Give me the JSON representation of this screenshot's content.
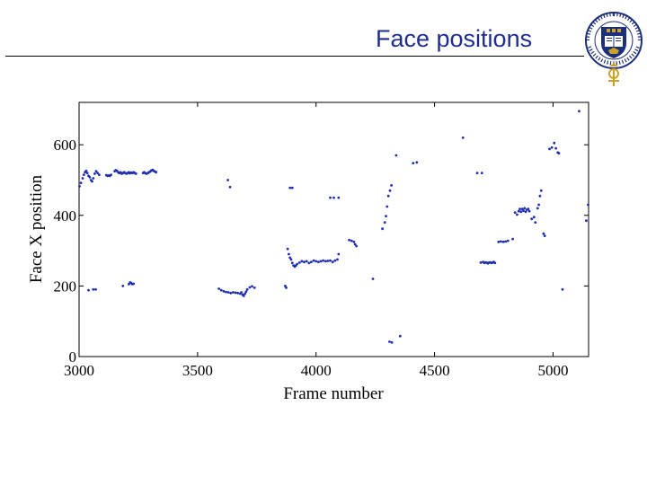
{
  "slide": {
    "title": "Face positions"
  },
  "colors": {
    "title": "#1f2d8f",
    "marker": "#1f2db0",
    "crest_blue": "#1c2f7a",
    "crest_gold": "#c9a227"
  },
  "crest": {
    "icon": "university-of-oxford-crest",
    "lettering": "UNIVERSITY OF OXFORD"
  },
  "chart_data": {
    "type": "scatter",
    "title": "",
    "xlabel": "Frame number",
    "ylabel": "Face X position",
    "xlim": [
      3000,
      5150
    ],
    "ylim": [
      0,
      720
    ],
    "xticks": [
      3000,
      3500,
      4000,
      4500,
      5000
    ],
    "yticks": [
      0,
      200,
      400,
      600
    ],
    "grid": false,
    "marker": "point",
    "series": [
      {
        "points": [
          [
            3002,
            482
          ],
          [
            3008,
            492
          ],
          [
            3015,
            505
          ],
          [
            3020,
            515
          ],
          [
            3025,
            522
          ],
          [
            3030,
            526
          ],
          [
            3035,
            520
          ],
          [
            3040,
            512
          ],
          [
            3045,
            508
          ],
          [
            3050,
            500
          ],
          [
            3055,
            496
          ],
          [
            3060,
            505
          ],
          [
            3066,
            518
          ],
          [
            3072,
            525
          ],
          [
            3078,
            520
          ],
          [
            3085,
            515
          ],
          [
            3115,
            514
          ],
          [
            3120,
            512
          ],
          [
            3125,
            513
          ],
          [
            3130,
            512
          ],
          [
            3135,
            515
          ],
          [
            3150,
            525
          ],
          [
            3155,
            528
          ],
          [
            3160,
            526
          ],
          [
            3165,
            522
          ],
          [
            3170,
            520
          ],
          [
            3175,
            522
          ],
          [
            3180,
            518
          ],
          [
            3185,
            520
          ],
          [
            3190,
            522
          ],
          [
            3195,
            520
          ],
          [
            3200,
            518
          ],
          [
            3205,
            520
          ],
          [
            3210,
            522
          ],
          [
            3215,
            519
          ],
          [
            3220,
            521
          ],
          [
            3225,
            520
          ],
          [
            3230,
            522
          ],
          [
            3235,
            520
          ],
          [
            3240,
            518
          ],
          [
            3270,
            520
          ],
          [
            3275,
            522
          ],
          [
            3280,
            519
          ],
          [
            3285,
            518
          ],
          [
            3290,
            520
          ],
          [
            3295,
            522
          ],
          [
            3300,
            524
          ],
          [
            3305,
            527
          ],
          [
            3310,
            529
          ],
          [
            3315,
            526
          ],
          [
            3320,
            524
          ],
          [
            3325,
            522
          ],
          [
            3040,
            188
          ],
          [
            3060,
            190
          ],
          [
            3070,
            190
          ],
          [
            3185,
            200
          ],
          [
            3210,
            205
          ],
          [
            3215,
            210
          ],
          [
            3220,
            208
          ],
          [
            3225,
            205
          ],
          [
            3230,
            206
          ],
          [
            3590,
            192
          ],
          [
            3600,
            188
          ],
          [
            3610,
            185
          ],
          [
            3620,
            183
          ],
          [
            3630,
            182
          ],
          [
            3640,
            180
          ],
          [
            3650,
            182
          ],
          [
            3660,
            181
          ],
          [
            3670,
            180
          ],
          [
            3680,
            178
          ],
          [
            3685,
            182
          ],
          [
            3690,
            175
          ],
          [
            3695,
            172
          ],
          [
            3700,
            178
          ],
          [
            3705,
            184
          ],
          [
            3710,
            190
          ],
          [
            3720,
            196
          ],
          [
            3730,
            199
          ],
          [
            3740,
            195
          ],
          [
            3628,
            500
          ],
          [
            3637,
            480
          ],
          [
            3870,
            200
          ],
          [
            3874,
            195
          ],
          [
            3880,
            305
          ],
          [
            3885,
            290
          ],
          [
            3890,
            280
          ],
          [
            3895,
            275
          ],
          [
            3900,
            265
          ],
          [
            3905,
            258
          ],
          [
            3910,
            255
          ],
          [
            3915,
            258
          ],
          [
            3920,
            262
          ],
          [
            3930,
            266
          ],
          [
            3940,
            270
          ],
          [
            3950,
            268
          ],
          [
            3960,
            270
          ],
          [
            3970,
            265
          ],
          [
            3980,
            268
          ],
          [
            3990,
            272
          ],
          [
            4000,
            270
          ],
          [
            4010,
            268
          ],
          [
            4020,
            270
          ],
          [
            4030,
            272
          ],
          [
            4040,
            270
          ],
          [
            4050,
            271
          ],
          [
            4060,
            272
          ],
          [
            4070,
            268
          ],
          [
            4080,
            272
          ],
          [
            4090,
            275
          ],
          [
            4095,
            290
          ],
          [
            3890,
            478
          ],
          [
            3900,
            478
          ],
          [
            4060,
            450
          ],
          [
            4075,
            450
          ],
          [
            4095,
            450
          ],
          [
            4140,
            330
          ],
          [
            4150,
            328
          ],
          [
            4160,
            325
          ],
          [
            4165,
            318
          ],
          [
            4170,
            313
          ],
          [
            4240,
            220
          ],
          [
            4280,
            362
          ],
          [
            4290,
            380
          ],
          [
            4295,
            398
          ],
          [
            4300,
            425
          ],
          [
            4305,
            455
          ],
          [
            4312,
            470
          ],
          [
            4318,
            485
          ],
          [
            4310,
            42
          ],
          [
            4320,
            40
          ],
          [
            4355,
            58
          ],
          [
            4338,
            570
          ],
          [
            4410,
            548
          ],
          [
            4425,
            550
          ],
          [
            4620,
            620
          ],
          [
            4680,
            520
          ],
          [
            4700,
            520
          ],
          [
            4695,
            266
          ],
          [
            4705,
            268
          ],
          [
            4710,
            265
          ],
          [
            4715,
            267
          ],
          [
            4720,
            266
          ],
          [
            4725,
            264
          ],
          [
            4730,
            266
          ],
          [
            4735,
            267
          ],
          [
            4740,
            265
          ],
          [
            4745,
            266
          ],
          [
            4750,
            268
          ],
          [
            4755,
            265
          ],
          [
            4770,
            325
          ],
          [
            4780,
            326
          ],
          [
            4790,
            325
          ],
          [
            4800,
            326
          ],
          [
            4810,
            328
          ],
          [
            4830,
            333
          ],
          [
            4840,
            408
          ],
          [
            4848,
            402
          ],
          [
            4855,
            412
          ],
          [
            4860,
            418
          ],
          [
            4865,
            410
          ],
          [
            4870,
            418
          ],
          [
            4875,
            413
          ],
          [
            4880,
            420
          ],
          [
            4885,
            410
          ],
          [
            4890,
            416
          ],
          [
            4895,
            418
          ],
          [
            4900,
            412
          ],
          [
            4910,
            390
          ],
          [
            4920,
            395
          ],
          [
            4925,
            380
          ],
          [
            4935,
            420
          ],
          [
            4940,
            430
          ],
          [
            4945,
            455
          ],
          [
            4950,
            470
          ],
          [
            4960,
            348
          ],
          [
            4965,
            342
          ],
          [
            4985,
            588
          ],
          [
            4995,
            592
          ],
          [
            5005,
            605
          ],
          [
            5012,
            590
          ],
          [
            5020,
            578
          ],
          [
            5025,
            576
          ],
          [
            5040,
            190
          ],
          [
            5110,
            695
          ],
          [
            5140,
            385
          ],
          [
            5148,
            430
          ]
        ]
      }
    ]
  }
}
